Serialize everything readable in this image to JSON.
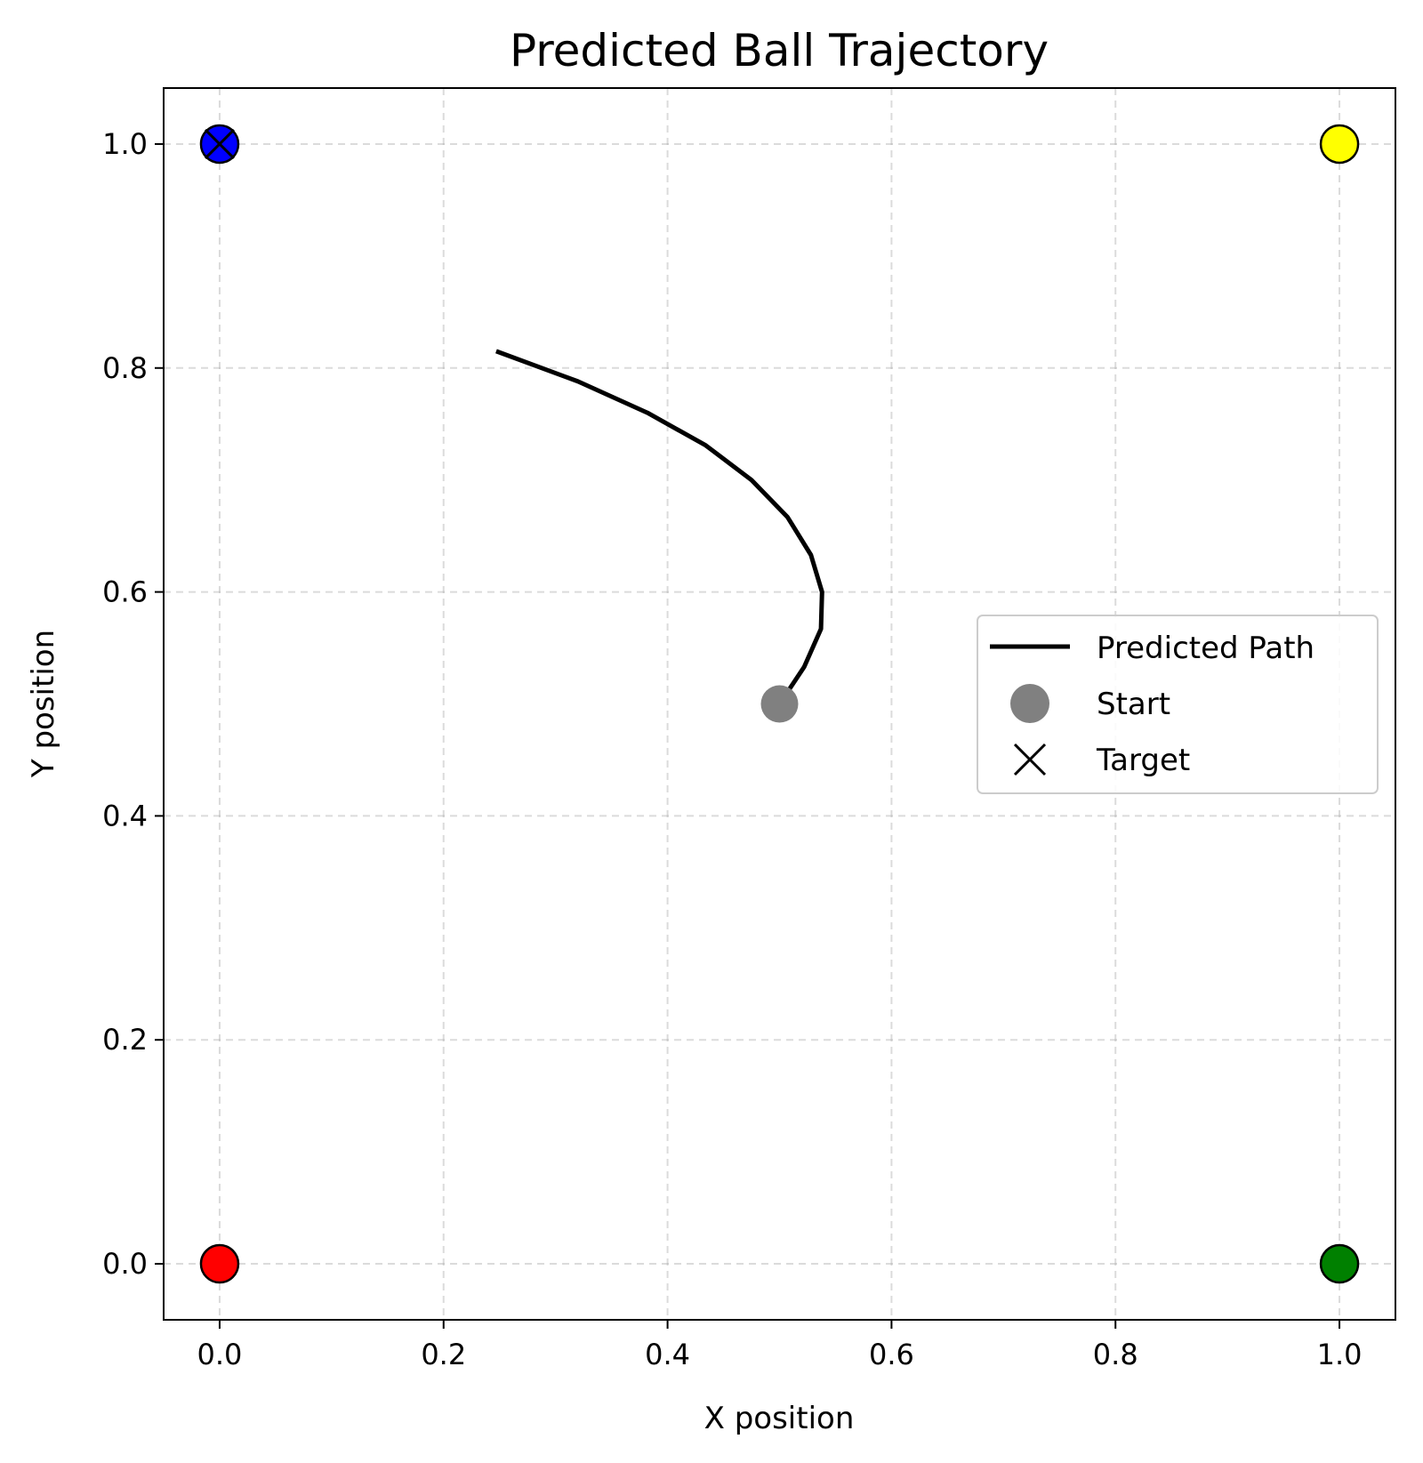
{
  "chart_data": {
    "type": "line",
    "title": "Predicted Ball Trajectory",
    "xlabel": "X position",
    "ylabel": "Y position",
    "xlim": [
      -0.05,
      1.05
    ],
    "ylim": [
      -0.05,
      1.05
    ],
    "xticks": [
      "0.0",
      "0.2",
      "0.4",
      "0.6",
      "0.8",
      "1.0"
    ],
    "yticks": [
      "0.0",
      "0.2",
      "0.4",
      "0.6",
      "0.8",
      "1.0"
    ],
    "grid": true,
    "legend_position": "center-right",
    "series": [
      {
        "name": "Predicted Path",
        "kind": "line",
        "color": "#000000",
        "x": [
          0.5,
          0.522,
          0.537,
          0.538,
          0.528,
          0.507,
          0.475,
          0.434,
          0.382,
          0.32,
          0.247
        ],
        "y": [
          0.5,
          0.533,
          0.567,
          0.6,
          0.633,
          0.667,
          0.7,
          0.731,
          0.76,
          0.788,
          0.815
        ]
      },
      {
        "name": "Start",
        "kind": "marker",
        "color": "#808080",
        "x": [
          0.5
        ],
        "y": [
          0.5
        ]
      },
      {
        "name": "Target",
        "kind": "x-marker",
        "color": "#000000",
        "x": [
          0.0
        ],
        "y": [
          1.0
        ]
      }
    ],
    "corner_points": [
      {
        "x": 0.0,
        "y": 1.0,
        "color": "#0000ff"
      },
      {
        "x": 1.0,
        "y": 1.0,
        "color": "#ffff00"
      },
      {
        "x": 0.0,
        "y": 0.0,
        "color": "#ff0000"
      },
      {
        "x": 1.0,
        "y": 0.0,
        "color": "#008000"
      }
    ]
  }
}
